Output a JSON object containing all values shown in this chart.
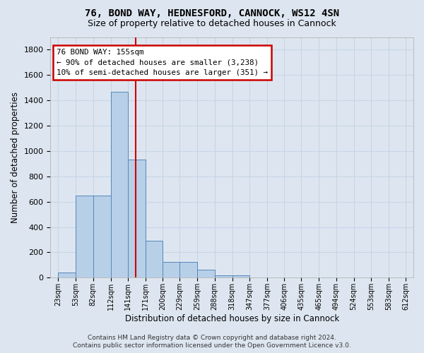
{
  "title1": "76, BOND WAY, HEDNESFORD, CANNOCK, WS12 4SN",
  "title2": "Size of property relative to detached houses in Cannock",
  "xlabel": "Distribution of detached houses by size in Cannock",
  "ylabel": "Number of detached properties",
  "bin_labels": [
    "23sqm",
    "53sqm",
    "82sqm",
    "112sqm",
    "141sqm",
    "171sqm",
    "200sqm",
    "229sqm",
    "259sqm",
    "288sqm",
    "318sqm",
    "347sqm",
    "377sqm",
    "406sqm",
    "435sqm",
    "465sqm",
    "494sqm",
    "524sqm",
    "553sqm",
    "583sqm",
    "612sqm"
  ],
  "bin_edges": [
    23,
    53,
    82,
    112,
    141,
    171,
    200,
    229,
    259,
    288,
    318,
    347,
    377,
    406,
    435,
    465,
    494,
    524,
    553,
    583,
    612
  ],
  "bar_heights": [
    40,
    650,
    650,
    1470,
    935,
    290,
    125,
    125,
    65,
    20,
    20,
    0,
    0,
    0,
    0,
    0,
    0,
    0,
    0,
    0
  ],
  "bar_color": "#b8cfe8",
  "bar_edge_color": "#5588bb",
  "vline_x": 155,
  "vline_color": "#cc0000",
  "annotation_line1": "76 BOND WAY: 155sqm",
  "annotation_line2": "← 90% of detached houses are smaller (3,238)",
  "annotation_line3": "10% of semi-detached houses are larger (351) →",
  "annotation_box_color": "#ffffff",
  "annotation_box_edge": "#cc0000",
  "ylim": [
    0,
    1900
  ],
  "yticks": [
    0,
    200,
    400,
    600,
    800,
    1000,
    1200,
    1400,
    1600,
    1800
  ],
  "xlim_left": 10,
  "xlim_right": 625,
  "grid_color": "#c8d4e8",
  "plot_bg_color": "#dde6f0",
  "fig_bg_color": "#dde6f0",
  "footnote": "Contains HM Land Registry data © Crown copyright and database right 2024.\nContains public sector information licensed under the Open Government Licence v3.0."
}
